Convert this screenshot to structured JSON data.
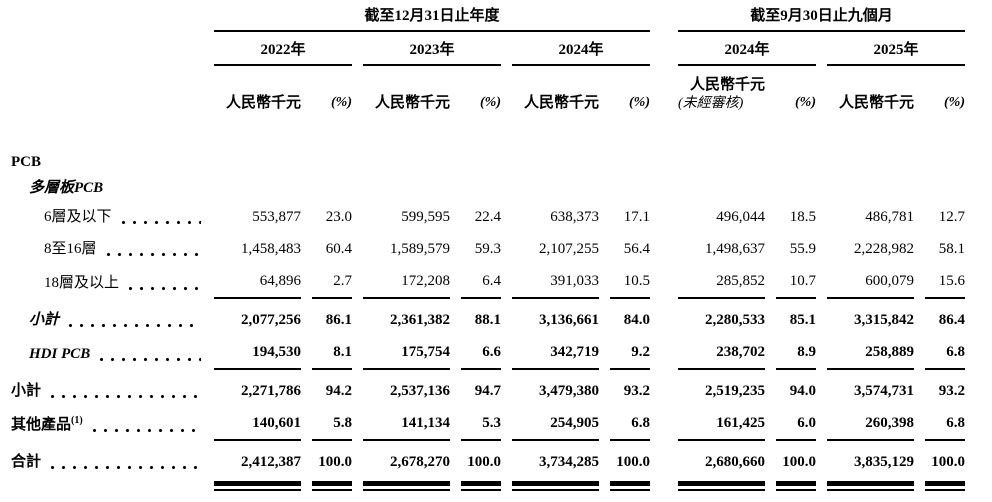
{
  "table": {
    "header": {
      "groups": [
        {
          "label": "截至12月31日止年度"
        },
        {
          "label": "截至9月30日止九個月"
        }
      ],
      "years": [
        {
          "label": "2022年",
          "unit": "人民幣千元",
          "pct": "(%)"
        },
        {
          "label": "2023年",
          "unit": "人民幣千元",
          "pct": "(%)"
        },
        {
          "label": "2024年",
          "unit": "人民幣千元",
          "pct": "(%)"
        },
        {
          "label": "2024年",
          "unit": "人民幣千元",
          "pct": "(%)",
          "note": "(未經審核)"
        },
        {
          "label": "2025年",
          "unit": "人民幣千元",
          "pct": "(%)"
        }
      ]
    },
    "rows": [
      {
        "label": "PCB",
        "indent": 0,
        "bold": true,
        "italic": false,
        "leader": false,
        "values": []
      },
      {
        "label": "多層板PCB",
        "indent": 1,
        "bold": true,
        "italic": true,
        "leader": false,
        "values": []
      },
      {
        "label": "6層及以下",
        "indent": 2,
        "bold": false,
        "italic": false,
        "leader": true,
        "values": [
          "553,877",
          "23.0",
          "599,595",
          "22.4",
          "638,373",
          "17.1",
          "496,044",
          "18.5",
          "486,781",
          "12.7"
        ]
      },
      {
        "label": "8至16層",
        "indent": 2,
        "bold": false,
        "italic": false,
        "leader": true,
        "values": [
          "1,458,483",
          "60.4",
          "1,589,579",
          "59.3",
          "2,107,255",
          "56.4",
          "1,498,637",
          "55.9",
          "2,228,982",
          "58.1"
        ]
      },
      {
        "label": "18層及以上",
        "indent": 2,
        "bold": false,
        "italic": false,
        "leader": true,
        "rule_below": true,
        "values": [
          "64,896",
          "2.7",
          "172,208",
          "6.4",
          "391,033",
          "10.5",
          "285,852",
          "10.7",
          "600,079",
          "15.6"
        ]
      },
      {
        "label": "小計",
        "indent": 1,
        "bold": true,
        "italic": true,
        "leader": true,
        "values": [
          "2,077,256",
          "86.1",
          "2,361,382",
          "88.1",
          "3,136,661",
          "84.0",
          "2,280,533",
          "85.1",
          "3,315,842",
          "86.4"
        ]
      },
      {
        "label": "HDI PCB",
        "indent": 1,
        "bold": true,
        "italic": true,
        "leader": true,
        "rule_below": true,
        "values": [
          "194,530",
          "8.1",
          "175,754",
          "6.6",
          "342,719",
          "9.2",
          "238,702",
          "8.9",
          "258,889",
          "6.8"
        ]
      },
      {
        "label": "小計",
        "indent": 0,
        "bold": true,
        "italic": false,
        "leader": true,
        "values": [
          "2,271,786",
          "94.2",
          "2,537,136",
          "94.7",
          "3,479,380",
          "93.2",
          "2,519,235",
          "94.0",
          "3,574,731",
          "93.2"
        ]
      },
      {
        "label": "其他產品",
        "sup": "(1)",
        "indent": 0,
        "bold": true,
        "italic": false,
        "leader": true,
        "rule_below": true,
        "values": [
          "140,601",
          "5.8",
          "141,134",
          "5.3",
          "254,905",
          "6.8",
          "161,425",
          "6.0",
          "260,398",
          "6.8"
        ]
      },
      {
        "label": "合計",
        "indent": 0,
        "bold": true,
        "italic": false,
        "leader": true,
        "double_rule_below": true,
        "values": [
          "2,412,387",
          "100.0",
          "2,678,270",
          "100.0",
          "3,734,285",
          "100.0",
          "2,680,660",
          "100.0",
          "3,835,129",
          "100.0"
        ]
      }
    ]
  }
}
